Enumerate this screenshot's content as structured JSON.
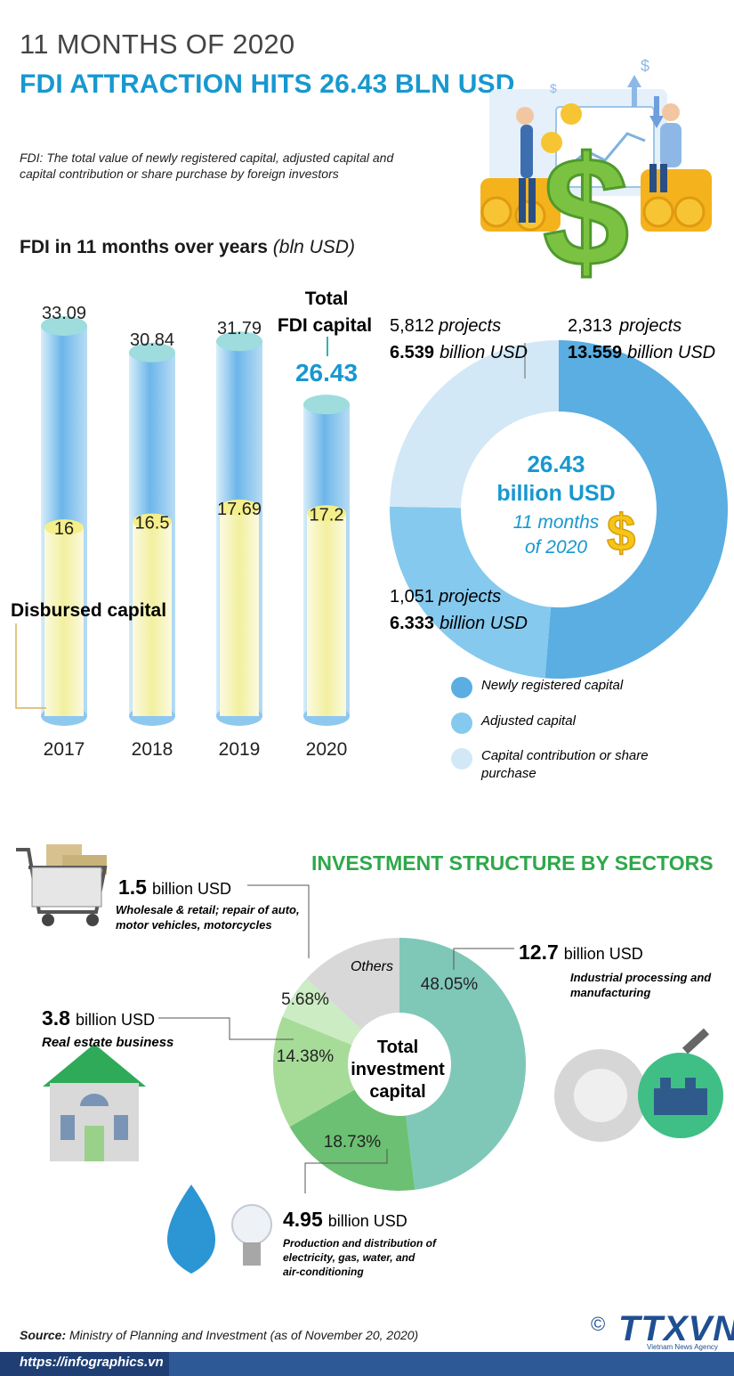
{
  "header": {
    "subtitle": "11 MONTHS OF 2020",
    "title": "FDI ATTRACTION HITS 26.43 BLN USD",
    "definition": "FDI: The total value of newly registered capital, adjusted capital and capital contribution or share purchase by foreign investors"
  },
  "fdi_section": {
    "title_bold": "FDI in 11 months over years",
    "title_unit": "(bln USD)",
    "total_label_line1": "Total",
    "total_label_line2": "FDI capital",
    "disbursed_label": "Disbursed capital"
  },
  "donut_capital": {
    "center_value": "26.43",
    "center_unit": "billion USD",
    "center_period1": "11 months",
    "center_period2": "of 2020",
    "callouts": [
      {
        "projects": "2,313",
        "projects_word": "projects",
        "value": "13.559",
        "unit": "billion USD"
      },
      {
        "projects": "5,812",
        "projects_word": "projects",
        "value": "6.539",
        "unit": "billion USD"
      },
      {
        "projects": "1,051",
        "projects_word": "projects",
        "value": "6.333",
        "unit": "billion USD"
      }
    ],
    "legend": [
      {
        "label": "Newly registered capital",
        "color": "#5aaee2"
      },
      {
        "label": "Adjusted capital",
        "color": "#85c9ee"
      },
      {
        "label_line1": "Capital contribution or share",
        "label_line2": "purchase",
        "color": "#d2e8f7"
      }
    ]
  },
  "sectors": {
    "title": "INVESTMENT STRUCTURE BY SECTORS",
    "center_line1": "Total",
    "center_line2": "investment",
    "center_line3": "capital",
    "others_label": "Others",
    "items": [
      {
        "value": "12.7",
        "unit": "billion USD",
        "desc_line1": "Industrial processing and",
        "desc_line2": "manufacturing"
      },
      {
        "value": "1.5",
        "unit": "billion USD",
        "desc_line1": "Wholesale & retail; repair of auto,",
        "desc_line2": "motor vehicles, motorcycles"
      },
      {
        "value": "3.8",
        "unit": "billion USD",
        "desc_line1": "Real estate business",
        "desc_line2": ""
      },
      {
        "value": "4.95",
        "unit": "billion USD",
        "desc_line1": "Production and distribution of",
        "desc_line2": "electricity, gas, water, and",
        "desc_line3": "air-conditioning"
      }
    ]
  },
  "footer": {
    "source_label": "Source:",
    "source_text": "Ministry of Planning and Investment (as of November 20, 2020)",
    "url": "https://infographics.vn",
    "copyright": "©",
    "logo_text": "TTXVN",
    "logo_sub": "Vietnam News Agency"
  },
  "chart_data": [
    {
      "type": "bar",
      "title": "FDI in 11 months over years (bln USD)",
      "categories": [
        "2017",
        "2018",
        "2019",
        "2020"
      ],
      "series": [
        {
          "name": "Total FDI capital",
          "values": [
            33.09,
            30.84,
            31.79,
            26.43
          ]
        },
        {
          "name": "Disbursed capital",
          "values": [
            16,
            16.5,
            17.69,
            17.2
          ]
        }
      ],
      "value_labels_total": [
        "33.09",
        "30.84",
        "31.79",
        "26.43"
      ],
      "value_labels_disbursed": [
        "16",
        "16.5",
        "17.69",
        "17.2"
      ],
      "ylim": [
        0,
        35
      ]
    },
    {
      "type": "pie",
      "title": "Total FDI capital 11 months of 2020",
      "labels": [
        "Newly registered capital",
        "Adjusted capital",
        "Capital contribution or share purchase"
      ],
      "values": [
        13.559,
        6.333,
        6.539
      ],
      "colors": [
        "#5aaee2",
        "#85c9ee",
        "#d2e8f7"
      ]
    },
    {
      "type": "pie",
      "title": "Investment structure by sectors",
      "labels": [
        "Industrial processing and manufacturing",
        "Production and distribution of electricity, gas, water, and air-conditioning",
        "Real estate business",
        "Wholesale & retail; repair of auto, motor vehicles, motorcycles",
        "Others"
      ],
      "values": [
        48.05,
        18.73,
        14.38,
        5.68,
        13.16
      ],
      "pct_labels": [
        "48.05%",
        "18.73%",
        "14.38%",
        "5.68%",
        ""
      ],
      "colors": [
        "#7fc8b8",
        "#6cc073",
        "#a7dc98",
        "#ccecc4",
        "#d8d8d8"
      ]
    }
  ]
}
